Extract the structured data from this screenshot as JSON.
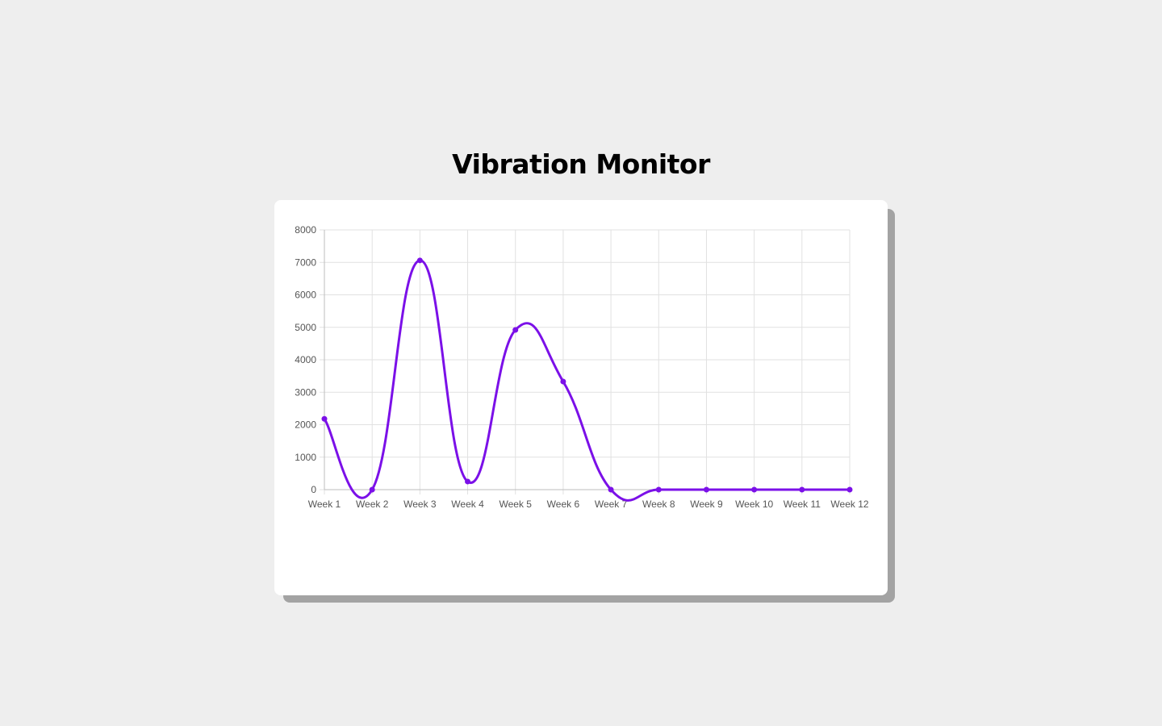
{
  "page": {
    "title": "Vibration Monitor"
  },
  "colors": {
    "background": "#eeeeee",
    "card": "#ffffff",
    "card_shadow": "#a3a3a3",
    "line": "#7b10e8",
    "grid": "#e1e1e1",
    "tick_text": "#555555"
  },
  "chart_data": {
    "type": "line",
    "title": "",
    "xlabel": "",
    "ylabel": "",
    "categories": [
      "Week 1",
      "Week 2",
      "Week 3",
      "Week 4",
      "Week 5",
      "Week 6",
      "Week 7",
      "Week 8",
      "Week 9",
      "Week 10",
      "Week 11",
      "Week 12"
    ],
    "series": [
      {
        "values": [
          2180,
          0,
          7060,
          250,
          4920,
          3330,
          0,
          0,
          0,
          0,
          0,
          0
        ]
      }
    ],
    "ylim": [
      0,
      8000
    ],
    "yticks": [
      0,
      1000,
      2000,
      3000,
      4000,
      5000,
      6000,
      7000,
      8000
    ],
    "grid": true,
    "legend": "none",
    "smooth": true
  }
}
